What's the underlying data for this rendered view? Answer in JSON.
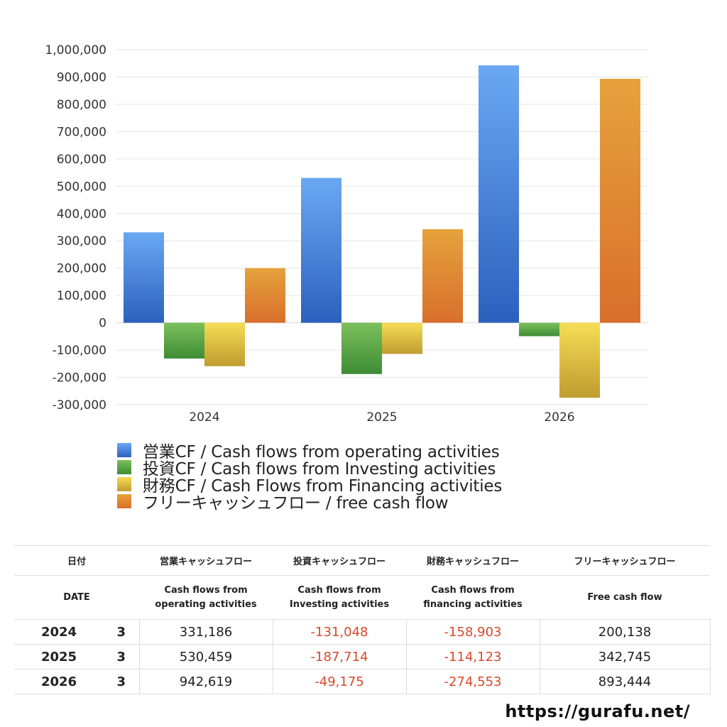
{
  "chart_data": {
    "type": "bar",
    "categories": [
      "2024",
      "2025",
      "2026"
    ],
    "series": [
      {
        "name": "営業CF / Cash flows from operating activities",
        "values": [
          331186,
          530459,
          942619
        ]
      },
      {
        "name": "投資CF / Cash flows from Investing activities",
        "values": [
          -131048,
          -187714,
          -49175
        ]
      },
      {
        "name": "財務CF / Cash Flows from Financing activities",
        "values": [
          -158903,
          -114123,
          -274553
        ]
      },
      {
        "name": "フリーキャッシュフロー / free cash flow",
        "values": [
          200138,
          342745,
          893444
        ]
      }
    ],
    "ylim": [
      -300000,
      1000000
    ],
    "yticks": [
      "1,000,000",
      "900,000",
      "800,000",
      "700,000",
      "600,000",
      "500,000",
      "400,000",
      "300,000",
      "200,000",
      "100,000",
      "0",
      "-100,000",
      "-200,000",
      "-300,000"
    ],
    "grid": true,
    "legend_position": "bottom-left",
    "colors": {
      "operating": [
        "#6aa8f3",
        "#2c60bd"
      ],
      "investing": [
        "#7cc05c",
        "#3e8c35"
      ],
      "financing": [
        "#f6dd55",
        "#bf9c30"
      ],
      "free": [
        "#e6a23c",
        "#d86f2c"
      ]
    }
  },
  "table": {
    "header_ja": [
      "日付",
      "営業キャッシュフロー",
      "投資キャッシュフロー",
      "財務キャッシュフロー",
      "フリーキャッシュフロー"
    ],
    "header_en": [
      "DATE",
      "Cash flows from\noperating activities",
      "Cash flows from\nInvesting activities",
      "Cash flows from\nfinancing activities",
      "Free cash flow"
    ],
    "rows": [
      {
        "year": "2024",
        "month": "3",
        "operating": "331,186",
        "investing": "-131,048",
        "financing": "-158,903",
        "free": "200,138"
      },
      {
        "year": "2025",
        "month": "3",
        "operating": "530,459",
        "investing": "-187,714",
        "financing": "-114,123",
        "free": "342,745"
      },
      {
        "year": "2026",
        "month": "3",
        "operating": "942,619",
        "investing": "-49,175",
        "financing": "-274,553",
        "free": "893,444"
      }
    ]
  },
  "source_url": "https://gurafu.net/"
}
